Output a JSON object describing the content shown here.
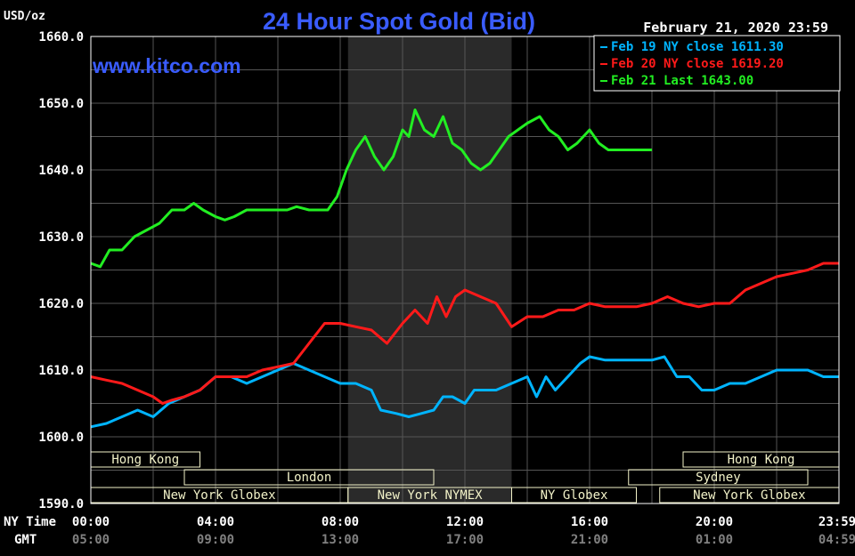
{
  "header": {
    "unit_label": "USD/oz",
    "title": "24 Hour Spot Gold (Bid)",
    "date_label": "February 21, 2020 23:59",
    "watermark": "www.kitco.com"
  },
  "colors": {
    "background": "#000000",
    "plot_background": "#000000",
    "grid": "#555555",
    "frame": "#ffffff",
    "title": "#3a5cff",
    "watermark": "#3a5cff",
    "nymex_shade": "#2a2a2a",
    "session_fill": "#f2f2c8",
    "feb19": "#00b4ff",
    "feb20": "#ff1a1a",
    "feb21": "#22ee22"
  },
  "legend": [
    {
      "label": "Feb 19 NY close 1611.30",
      "color": "#00b4ff"
    },
    {
      "label": "Feb 20 NY close 1619.20",
      "color": "#ff1a1a"
    },
    {
      "label": "Feb 21 Last 1643.00",
      "color": "#22ee22"
    }
  ],
  "sessions": [
    {
      "label": "Hong Kong",
      "start": 0,
      "end": 3.5
    },
    {
      "label": "London",
      "start": 3,
      "end": 11
    },
    {
      "label": "New York Globex",
      "start": 0,
      "end": 8.25
    },
    {
      "label": "New York NYMEX",
      "start": 8.25,
      "end": 13.5
    },
    {
      "label": "NY Globex",
      "start": 13.5,
      "end": 17.5
    },
    {
      "label": "Sydney",
      "start": 17.25,
      "end": 23
    },
    {
      "label": "Hong Kong",
      "start": 19,
      "end": 24
    },
    {
      "label": "New York Globex",
      "start": 18.25,
      "end": 24
    }
  ],
  "x_axis": {
    "row1_label": "NY Time",
    "row2_label": "GMT",
    "ticks_ny": [
      "00:00",
      "04:00",
      "08:00",
      "12:00",
      "16:00",
      "20:00",
      "23:59"
    ],
    "ticks_gmt": [
      "05:00",
      "09:00",
      "13:00",
      "17:00",
      "21:00",
      "01:00",
      "04:59"
    ]
  },
  "chart_data": {
    "type": "line",
    "title": "24 Hour Spot Gold (Bid)",
    "ylabel": "USD/oz",
    "ylim": [
      1590,
      1660
    ],
    "xlim": [
      0,
      24
    ],
    "y_ticks": [
      "1660.0",
      "1650.0",
      "1640.0",
      "1630.0",
      "1620.0",
      "1610.0",
      "1600.0",
      "1590.0"
    ],
    "nymex_hours": [
      8.25,
      13.5
    ],
    "series": [
      {
        "name": "Feb 19 NY close 1611.30",
        "color": "#00b4ff",
        "points": [
          [
            0,
            1601.5
          ],
          [
            0.5,
            1602
          ],
          [
            1,
            1603
          ],
          [
            1.5,
            1604
          ],
          [
            2,
            1603
          ],
          [
            2.5,
            1605
          ],
          [
            3,
            1606
          ],
          [
            3.5,
            1607
          ],
          [
            4,
            1609
          ],
          [
            4.5,
            1609
          ],
          [
            5,
            1608
          ],
          [
            5.5,
            1609
          ],
          [
            6,
            1610
          ],
          [
            6.5,
            1611
          ],
          [
            7,
            1610
          ],
          [
            7.5,
            1609
          ],
          [
            8,
            1608
          ],
          [
            8.5,
            1608
          ],
          [
            9,
            1607
          ],
          [
            9.3,
            1604
          ],
          [
            9.8,
            1603.5
          ],
          [
            10.2,
            1603
          ],
          [
            10.6,
            1603.5
          ],
          [
            11,
            1604
          ],
          [
            11.3,
            1606
          ],
          [
            11.6,
            1606
          ],
          [
            12,
            1605
          ],
          [
            12.3,
            1607
          ],
          [
            12.7,
            1607
          ],
          [
            13,
            1607
          ],
          [
            13.5,
            1608
          ],
          [
            14,
            1609
          ],
          [
            14.3,
            1606
          ],
          [
            14.6,
            1609
          ],
          [
            14.9,
            1607
          ],
          [
            15.3,
            1609
          ],
          [
            15.7,
            1611
          ],
          [
            16,
            1612
          ],
          [
            16.5,
            1611.5
          ],
          [
            17,
            1611.5
          ],
          [
            17.5,
            1611.5
          ],
          [
            18,
            1611.5
          ],
          [
            18.4,
            1612
          ],
          [
            18.8,
            1609
          ],
          [
            19.2,
            1609
          ],
          [
            19.6,
            1607
          ],
          [
            20,
            1607
          ],
          [
            20.5,
            1608
          ],
          [
            21,
            1608
          ],
          [
            21.5,
            1609
          ],
          [
            22,
            1610
          ],
          [
            22.5,
            1610
          ],
          [
            23,
            1610
          ],
          [
            23.5,
            1609
          ],
          [
            24,
            1609
          ]
        ]
      },
      {
        "name": "Feb 20 NY close 1619.20",
        "color": "#ff1a1a",
        "points": [
          [
            0,
            1609
          ],
          [
            0.5,
            1608.5
          ],
          [
            1,
            1608
          ],
          [
            1.5,
            1607
          ],
          [
            2,
            1606
          ],
          [
            2.3,
            1605
          ],
          [
            2.6,
            1605.5
          ],
          [
            3,
            1606
          ],
          [
            3.5,
            1607
          ],
          [
            4,
            1609
          ],
          [
            4.5,
            1609
          ],
          [
            5,
            1609
          ],
          [
            5.5,
            1610
          ],
          [
            6,
            1610.5
          ],
          [
            6.5,
            1611
          ],
          [
            7,
            1614
          ],
          [
            7.5,
            1617
          ],
          [
            8,
            1617
          ],
          [
            8.5,
            1616.5
          ],
          [
            9,
            1616
          ],
          [
            9.5,
            1614
          ],
          [
            10,
            1617
          ],
          [
            10.4,
            1619
          ],
          [
            10.8,
            1617
          ],
          [
            11.1,
            1621
          ],
          [
            11.4,
            1618
          ],
          [
            11.7,
            1621
          ],
          [
            12,
            1622
          ],
          [
            12.5,
            1621
          ],
          [
            13,
            1620
          ],
          [
            13.5,
            1616.5
          ],
          [
            14,
            1618
          ],
          [
            14.5,
            1618
          ],
          [
            15,
            1619
          ],
          [
            15.5,
            1619
          ],
          [
            16,
            1620
          ],
          [
            16.5,
            1619.5
          ],
          [
            17,
            1619.5
          ],
          [
            17.5,
            1619.5
          ],
          [
            18,
            1620
          ],
          [
            18.5,
            1621
          ],
          [
            19,
            1620
          ],
          [
            19.5,
            1619.5
          ],
          [
            20,
            1620
          ],
          [
            20.5,
            1620
          ],
          [
            21,
            1622
          ],
          [
            21.5,
            1623
          ],
          [
            22,
            1624
          ],
          [
            22.5,
            1624.5
          ],
          [
            23,
            1625
          ],
          [
            23.5,
            1626
          ],
          [
            24,
            1626
          ]
        ]
      },
      {
        "name": "Feb 21 Last 1643.00",
        "color": "#22ee22",
        "points": [
          [
            0,
            1626
          ],
          [
            0.3,
            1625.5
          ],
          [
            0.6,
            1628
          ],
          [
            1,
            1628
          ],
          [
            1.4,
            1630
          ],
          [
            1.8,
            1631
          ],
          [
            2.2,
            1632
          ],
          [
            2.6,
            1634
          ],
          [
            3,
            1634
          ],
          [
            3.3,
            1635
          ],
          [
            3.6,
            1634
          ],
          [
            4,
            1633
          ],
          [
            4.3,
            1632.5
          ],
          [
            4.6,
            1633
          ],
          [
            5,
            1634
          ],
          [
            5.3,
            1634
          ],
          [
            5.6,
            1634
          ],
          [
            6,
            1634
          ],
          [
            6.3,
            1634
          ],
          [
            6.6,
            1634.5
          ],
          [
            7,
            1634
          ],
          [
            7.3,
            1634
          ],
          [
            7.6,
            1634
          ],
          [
            7.9,
            1636
          ],
          [
            8.2,
            1640
          ],
          [
            8.5,
            1643
          ],
          [
            8.8,
            1645
          ],
          [
            9.1,
            1642
          ],
          [
            9.4,
            1640
          ],
          [
            9.7,
            1642
          ],
          [
            10,
            1646
          ],
          [
            10.2,
            1645
          ],
          [
            10.4,
            1649
          ],
          [
            10.7,
            1646
          ],
          [
            11,
            1645
          ],
          [
            11.3,
            1648
          ],
          [
            11.6,
            1644
          ],
          [
            11.9,
            1643
          ],
          [
            12.2,
            1641
          ],
          [
            12.5,
            1640
          ],
          [
            12.8,
            1641
          ],
          [
            13.1,
            1643
          ],
          [
            13.4,
            1645
          ],
          [
            13.7,
            1646
          ],
          [
            14,
            1647
          ],
          [
            14.4,
            1648
          ],
          [
            14.7,
            1646
          ],
          [
            15,
            1645
          ],
          [
            15.3,
            1643
          ],
          [
            15.6,
            1644
          ],
          [
            16,
            1646
          ],
          [
            16.3,
            1644
          ],
          [
            16.6,
            1643
          ],
          [
            17,
            1643
          ],
          [
            17.5,
            1643
          ],
          [
            18,
            1643
          ]
        ]
      }
    ]
  }
}
